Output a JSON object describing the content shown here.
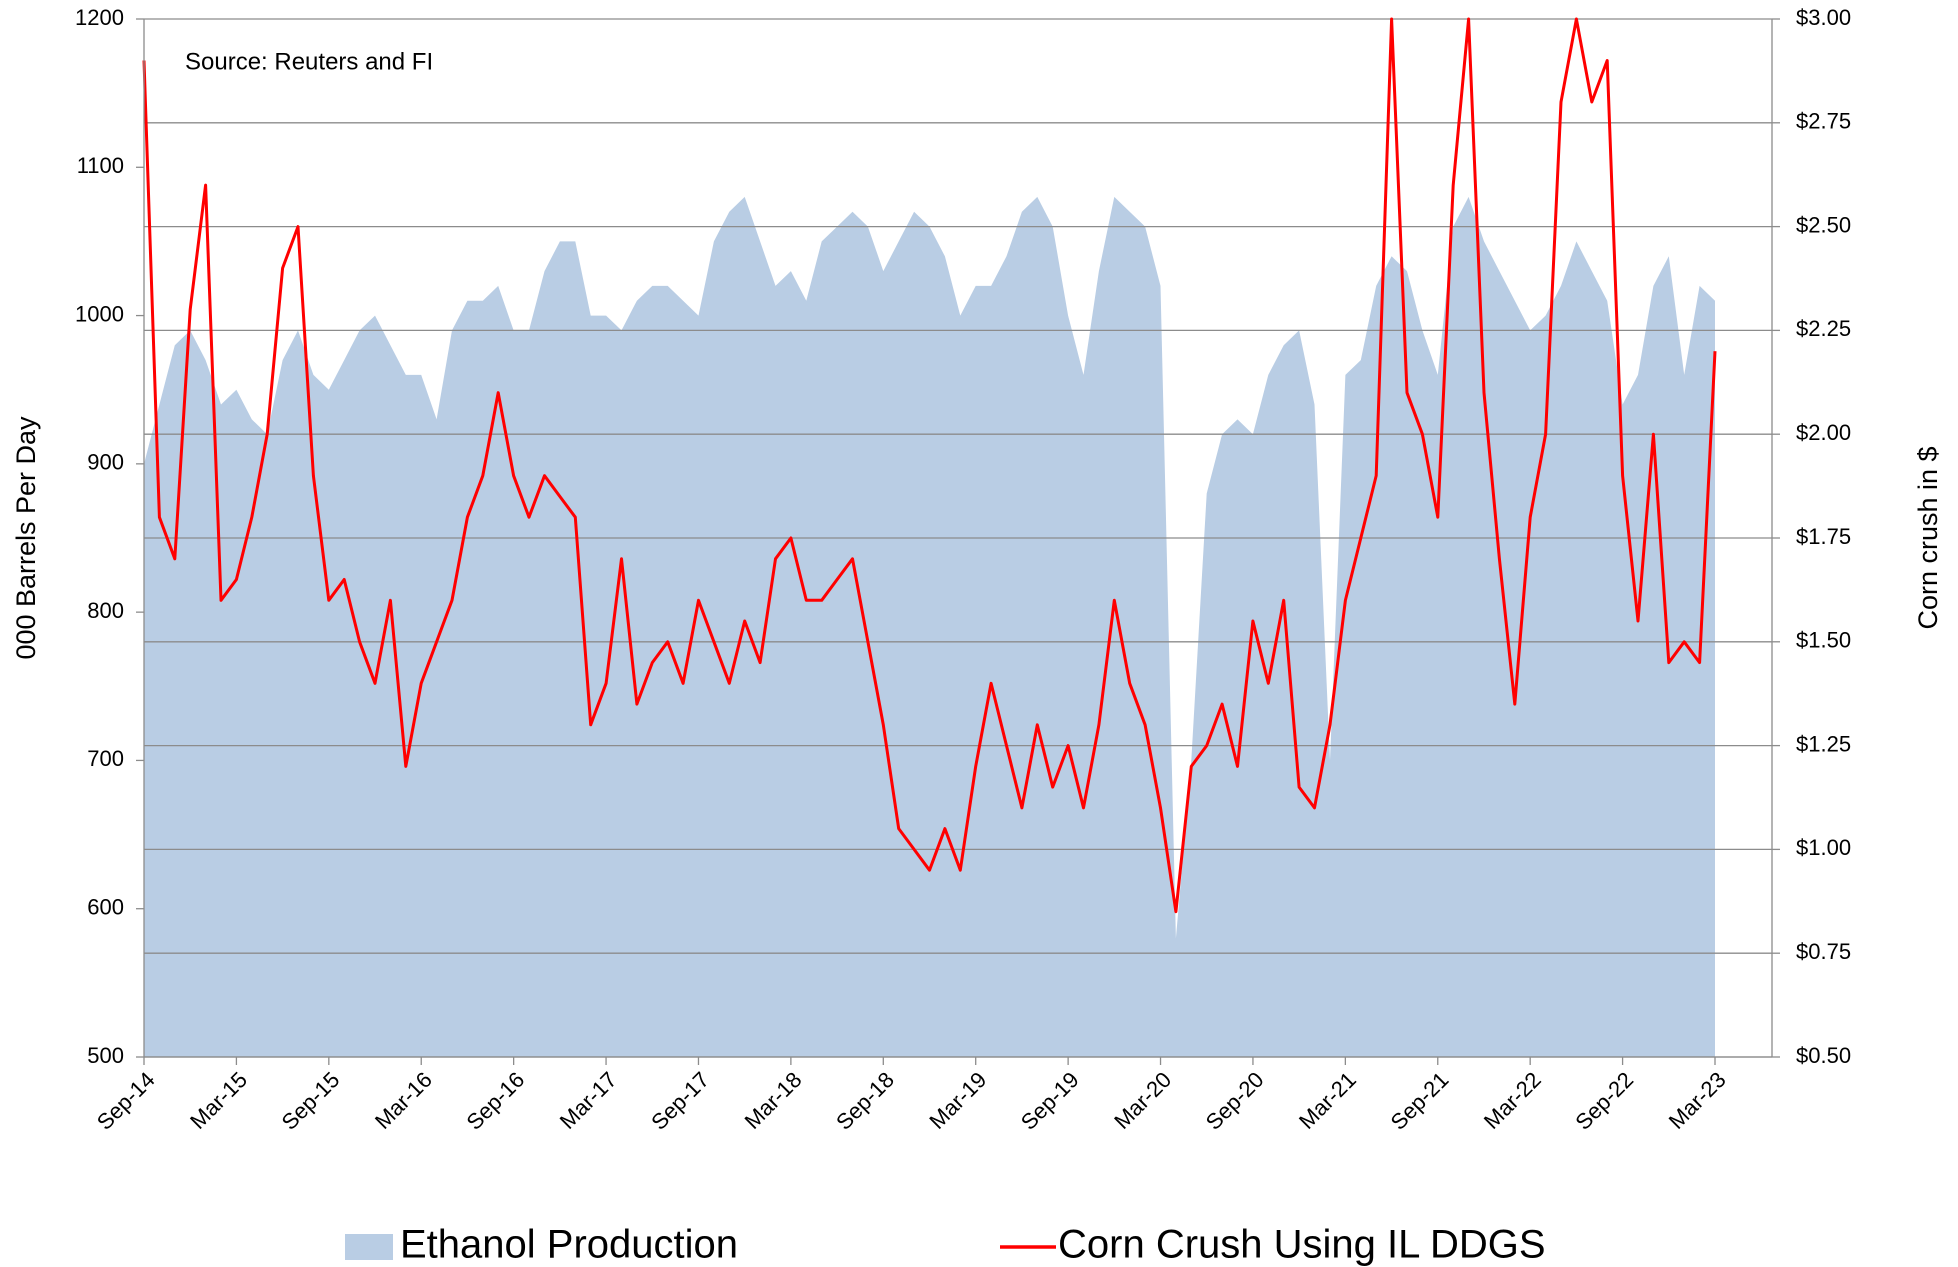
{
  "chart_data": {
    "type": "combo",
    "annotation": "Source: Reuters and FI",
    "ylabel": "000 Barrels Per Day",
    "y2label": "Corn crush in $",
    "categories": [
      "Sep-14",
      null,
      null,
      null,
      null,
      null,
      "Mar-15",
      null,
      null,
      null,
      null,
      null,
      "Sep-15",
      null,
      null,
      null,
      null,
      null,
      "Mar-16",
      null,
      null,
      null,
      null,
      null,
      "Sep-16",
      null,
      null,
      null,
      null,
      null,
      "Mar-17",
      null,
      null,
      null,
      null,
      null,
      "Sep-17",
      null,
      null,
      null,
      null,
      null,
      "Mar-18",
      null,
      null,
      null,
      null,
      null,
      "Sep-18",
      null,
      null,
      null,
      null,
      null,
      "Mar-19",
      null,
      null,
      null,
      null,
      null,
      "Sep-19",
      null,
      null,
      null,
      null,
      null,
      "Mar-20",
      null,
      null,
      null,
      null,
      null,
      "Sep-20",
      null,
      null,
      null,
      null,
      null,
      "Mar-21",
      null,
      null,
      null,
      null,
      null,
      "Sep-21",
      null,
      null,
      null,
      null,
      null,
      "Mar-22",
      null,
      null,
      null,
      null,
      null,
      "Sep-22",
      null,
      null,
      null,
      null,
      null,
      "Mar-23"
    ],
    "series": [
      {
        "name": "Ethanol Production",
        "type": "area",
        "axis": "y",
        "color": "#b9cde4",
        "values": [
          900,
          940,
          980,
          990,
          970,
          940,
          950,
          930,
          920,
          970,
          990,
          960,
          950,
          970,
          990,
          1000,
          980,
          960,
          960,
          930,
          990,
          1010,
          1010,
          1020,
          990,
          990,
          1030,
          1050,
          1050,
          1000,
          1000,
          990,
          1010,
          1020,
          1020,
          1010,
          1000,
          1050,
          1070,
          1080,
          1050,
          1020,
          1030,
          1010,
          1050,
          1060,
          1070,
          1060,
          1030,
          1050,
          1070,
          1060,
          1040,
          1000,
          1020,
          1020,
          1040,
          1070,
          1080,
          1060,
          1000,
          960,
          1030,
          1080,
          1070,
          1060,
          1020,
          580,
          700,
          880,
          920,
          930,
          920,
          960,
          980,
          990,
          940,
          700,
          960,
          970,
          1020,
          1040,
          1030,
          990,
          960,
          1060,
          1080,
          1050,
          1030,
          1010,
          990,
          1000,
          1020,
          1050,
          1030,
          1010,
          940,
          960,
          1020,
          1040,
          960,
          1020,
          1010
        ]
      },
      {
        "name": "Corn Crush Using IL DDGS",
        "type": "line",
        "axis": "y2",
        "color": "#ff0000",
        "values": [
          2.9,
          1.8,
          1.7,
          2.3,
          2.6,
          1.6,
          1.65,
          1.8,
          2.0,
          2.4,
          2.5,
          1.9,
          1.6,
          1.65,
          1.5,
          1.4,
          1.6,
          1.2,
          1.4,
          1.5,
          1.6,
          1.8,
          1.9,
          2.1,
          1.9,
          1.8,
          1.9,
          1.85,
          1.8,
          1.3,
          1.4,
          1.7,
          1.35,
          1.45,
          1.5,
          1.4,
          1.6,
          1.5,
          1.4,
          1.55,
          1.45,
          1.7,
          1.75,
          1.6,
          1.6,
          1.65,
          1.7,
          1.5,
          1.3,
          1.05,
          1.0,
          0.95,
          1.05,
          0.95,
          1.2,
          1.4,
          1.25,
          1.1,
          1.3,
          1.15,
          1.25,
          1.1,
          1.3,
          1.6,
          1.4,
          1.3,
          1.1,
          0.85,
          1.2,
          1.25,
          1.35,
          1.2,
          1.55,
          1.4,
          1.6,
          1.15,
          1.1,
          1.3,
          1.6,
          1.75,
          1.9,
          3.0,
          2.1,
          2.0,
          1.8,
          2.6,
          3.0,
          2.1,
          1.7,
          1.35,
          1.8,
          2.0,
          2.8,
          3.0,
          2.8,
          2.9,
          1.9,
          1.55,
          2.0,
          1.45,
          1.5,
          1.45,
          2.2
        ]
      }
    ],
    "ylim": [
      500,
      1200
    ],
    "yticks": [
      500,
      600,
      700,
      800,
      900,
      1000,
      1100,
      1200
    ],
    "y2lim": [
      0.5,
      3.0
    ],
    "y2ticks": [
      {
        "value": 0.5,
        "label": "$0.50"
      },
      {
        "value": 0.75,
        "label": "$0.75"
      },
      {
        "value": 1.0,
        "label": "$1.00"
      },
      {
        "value": 1.25,
        "label": "$1.25"
      },
      {
        "value": 1.5,
        "label": "$1.50"
      },
      {
        "value": 1.75,
        "label": "$1.75"
      },
      {
        "value": 2.0,
        "label": "$2.00"
      },
      {
        "value": 2.25,
        "label": "$2.25"
      },
      {
        "value": 2.5,
        "label": "$2.50"
      },
      {
        "value": 2.75,
        "label": "$2.75"
      },
      {
        "value": 3.0,
        "label": "$3.00"
      }
    ],
    "grid": true,
    "legend": "bottom"
  }
}
